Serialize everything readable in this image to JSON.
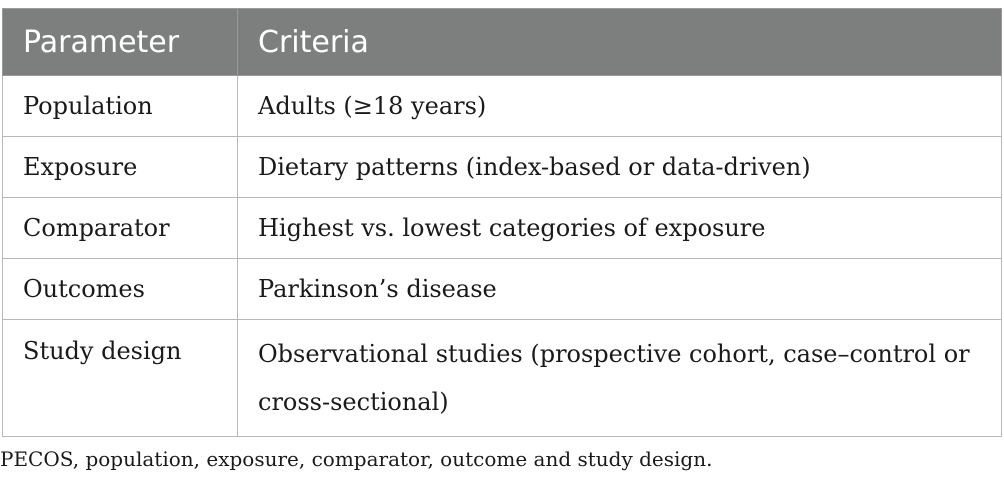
{
  "table": {
    "headers": [
      "Parameter",
      "Criteria"
    ],
    "rows": [
      {
        "parameter": "Population",
        "criteria": "Adults (≥18 years)"
      },
      {
        "parameter": "Exposure",
        "criteria": "Dietary patterns (index-based or data-driven)"
      },
      {
        "parameter": "Comparator",
        "criteria": "Highest vs. lowest categories of exposure"
      },
      {
        "parameter": "Outcomes",
        "criteria": "Parkinson’s disease"
      },
      {
        "parameter": "Study design",
        "criteria": "Observational studies (prospective cohort, case–control or cross-sectional)"
      }
    ]
  },
  "footnote": "PECOS, population, exposure, comparator, outcome and study design.",
  "colors": {
    "header_bg": "#7d7e7e",
    "header_text": "#ffffff",
    "border": "#b8b8b8"
  }
}
